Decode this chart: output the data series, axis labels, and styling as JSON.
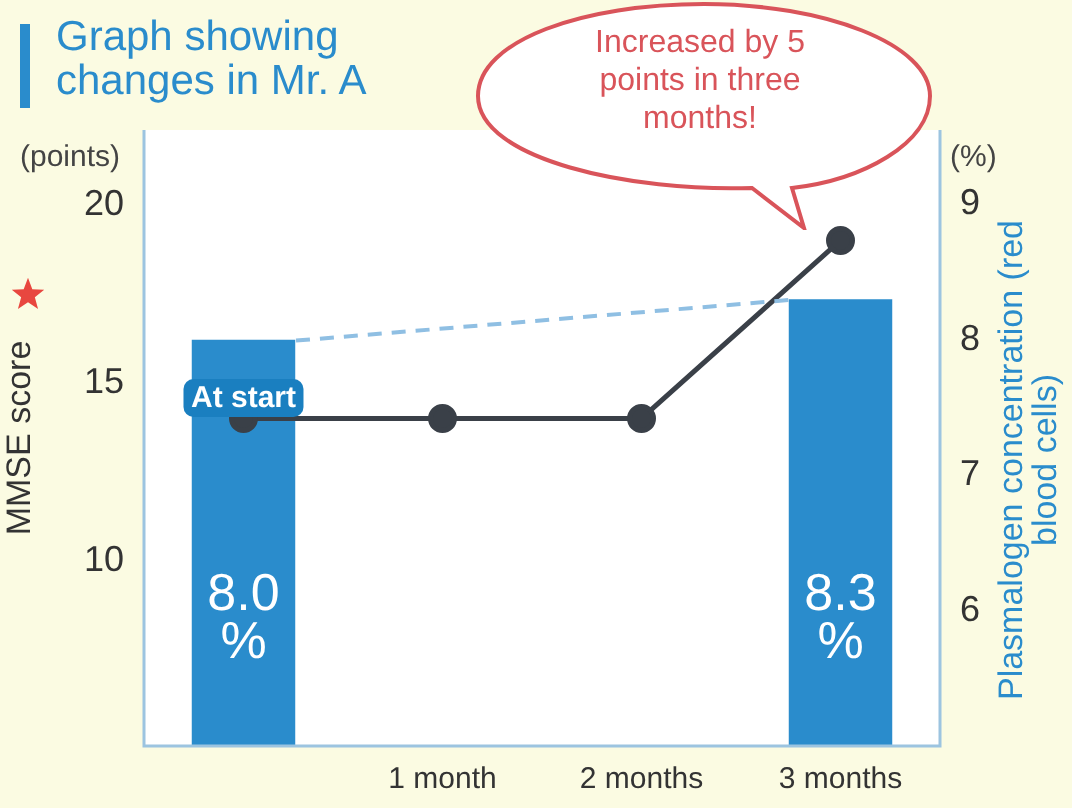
{
  "chart_data": {
    "type": "bar",
    "title": "Graph showing changes in Mr. A",
    "ylabel": "MMSE score",
    "y2label": "Plasmalogen concentration (red blood cells)",
    "categories": [
      null,
      "1 month",
      "2 months",
      "3 months"
    ],
    "series": [
      {
        "axis": "y2",
        "color": "#2a8ccc",
        "values": [
          8.0,
          null,
          null,
          8.3
        ],
        "value_labels": [
          "8.0 %",
          null,
          null,
          "8.3 %"
        ]
      },
      {
        "type": "line",
        "axis": "y",
        "color": "#3a4048",
        "values": [
          14,
          14,
          14,
          19
        ]
      }
    ],
    "ylim": [
      4.8,
      22.1
    ],
    "yticks": [
      10,
      15,
      20
    ],
    "y2lim": [
      5,
      9.55
    ],
    "y2ticks": [
      6,
      7,
      8,
      9
    ],
    "annotations": [
      "Increased by 5 points in three months!",
      "(points)",
      "(%)",
      "At start"
    ],
    "grid": false,
    "legend": false,
    "marker": "circle",
    "line_style": "solid"
  }
}
